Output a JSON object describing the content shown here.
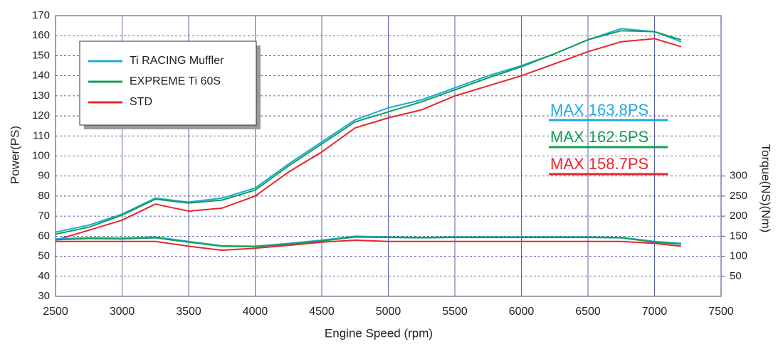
{
  "chart_data": {
    "type": "line",
    "x_label": "Engine Speed (rpm)",
    "y_label": "Power(PS)",
    "y2_label": "Torque(NS)(Nm)",
    "x": [
      2500,
      2750,
      3000,
      3250,
      3500,
      3750,
      4000,
      4250,
      4500,
      4750,
      5000,
      5250,
      5500,
      5750,
      6000,
      6250,
      6500,
      6750,
      7000,
      7200
    ],
    "xlim": [
      2500,
      7500
    ],
    "xticks": [
      2500,
      3000,
      3500,
      4000,
      4500,
      5000,
      5500,
      6000,
      6500,
      7000,
      7500
    ],
    "ylim": [
      30,
      170
    ],
    "yticks": [
      30,
      40,
      50,
      60,
      70,
      80,
      90,
      100,
      110,
      120,
      130,
      140,
      150,
      160,
      170
    ],
    "y2lim": [
      0,
      700
    ],
    "y2ticks": [
      50,
      100,
      150,
      200,
      250,
      300
    ],
    "grid": true,
    "legend": "upper left",
    "series": [
      {
        "name": "Ti RACING Muffler",
        "color": "#1ea7e1",
        "values": [
          62,
          65.5,
          71,
          79,
          77,
          79,
          84,
          96,
          107,
          118,
          124,
          128,
          134,
          140,
          145,
          151,
          158,
          163.5,
          162,
          157
        ]
      },
      {
        "name": "EXPREME Ti 60S",
        "color": "#12a050",
        "values": [
          61,
          64.5,
          70.5,
          78.5,
          76.5,
          78,
          83,
          95,
          106,
          117,
          122,
          127,
          133,
          139,
          144.5,
          151,
          158,
          162.5,
          162,
          158
        ]
      },
      {
        "name": "STD",
        "color": "#e8252e",
        "values": [
          58,
          63,
          68,
          76,
          72.5,
          74,
          80,
          92,
          102,
          114,
          119,
          123,
          130,
          135,
          140,
          146,
          152,
          157,
          158.5,
          154.5
        ]
      },
      {
        "color": "#1ea7e1",
        "axis": "y2",
        "values": [
          143,
          146,
          145,
          148,
          137,
          126,
          125,
          132,
          140,
          150,
          148,
          147,
          148,
          148,
          148,
          148,
          148,
          147,
          137,
          132
        ]
      },
      {
        "color": "#12a050",
        "axis": "y2",
        "values": [
          141,
          144,
          143,
          146,
          135,
          125,
          124,
          130,
          138,
          148,
          147,
          146,
          147,
          147,
          147,
          147,
          147,
          146,
          135,
          130
        ]
      },
      {
        "color": "#e8252e",
        "axis": "y2",
        "values": [
          137,
          137,
          137,
          137,
          125,
          115,
          120,
          127,
          135,
          140,
          137,
          137,
          137,
          137,
          137,
          137,
          137,
          137,
          132,
          125
        ]
      }
    ],
    "annotations": [
      {
        "text": "MAX 163.8PS",
        "color": "#1ea7e1"
      },
      {
        "text": "MAX 162.5PS",
        "color": "#12a050"
      },
      {
        "text": "MAX 158.7PS",
        "color": "#e8252e"
      }
    ]
  }
}
